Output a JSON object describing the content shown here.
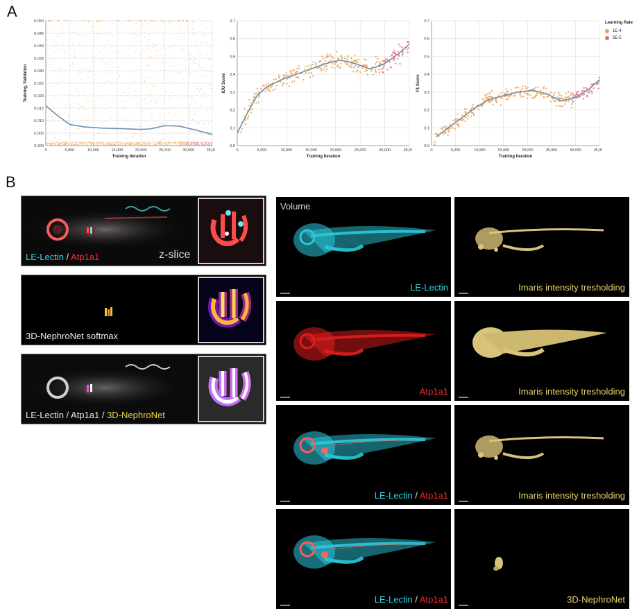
{
  "panels": {
    "a": "A",
    "b": "B"
  },
  "legend": {
    "title": "Learning Rate",
    "items": [
      {
        "label": "1E-4",
        "color": "#f0a04a"
      },
      {
        "label": "5E-5",
        "color": "#e0707a"
      }
    ]
  },
  "chart_data": [
    {
      "type": "scatter",
      "xlabel": "Training Iteration",
      "ylabel": "Training, Validation",
      "xlim": [
        0,
        35000
      ],
      "ylim": [
        0,
        0.05
      ],
      "x_ticks": [
        "0",
        "5,000",
        "10,000",
        "15,000",
        "20,000",
        "25,000",
        "30,000",
        "35,000"
      ],
      "y_ticks": [
        "0.000",
        "0.005",
        "0.010",
        "0.015",
        "0.020",
        "0.025",
        "0.030",
        "0.035",
        "0.040",
        "0.045",
        "0.050"
      ],
      "trend": {
        "x": [
          0,
          2500,
          5000,
          8000,
          12000,
          16000,
          20000,
          22000,
          25000,
          28000,
          31000,
          35000
        ],
        "y": [
          0.016,
          0.012,
          0.0085,
          0.0075,
          0.007,
          0.0068,
          0.0065,
          0.0067,
          0.008,
          0.0078,
          0.0065,
          0.0045
        ]
      },
      "grid": true
    },
    {
      "type": "scatter",
      "xlabel": "Training Iteration",
      "ylabel": "IOU Score",
      "xlim": [
        0,
        35000
      ],
      "ylim": [
        0,
        0.7
      ],
      "x_ticks": [
        "0",
        "5,000",
        "10,000",
        "15,000",
        "20,000",
        "25,000",
        "30,000",
        "35,000"
      ],
      "y_ticks": [
        "0.0",
        "0.1",
        "0.2",
        "0.3",
        "0.4",
        "0.5",
        "0.6",
        "0.7"
      ],
      "trend": {
        "x": [
          0,
          2000,
          4000,
          6000,
          9000,
          12000,
          15000,
          18000,
          21000,
          24000,
          27000,
          30000,
          33000,
          35000
        ],
        "y": [
          0.07,
          0.18,
          0.28,
          0.33,
          0.37,
          0.4,
          0.43,
          0.46,
          0.48,
          0.46,
          0.43,
          0.46,
          0.52,
          0.57
        ]
      },
      "grid": true
    },
    {
      "type": "scatter",
      "xlabel": "Training Iteration",
      "ylabel": "F1 Score",
      "xlim": [
        0,
        35000
      ],
      "ylim": [
        0,
        0.7
      ],
      "x_ticks": [
        "0",
        "5,000",
        "10,000",
        "15,000",
        "20,000",
        "25,000",
        "30,000",
        "35,000"
      ],
      "y_ticks": [
        "0.0",
        "0.1",
        "0.2",
        "0.3",
        "0.4",
        "0.5",
        "0.6",
        "0.7"
      ],
      "trend": {
        "x": [
          1000,
          3000,
          6000,
          9000,
          12000,
          15000,
          18000,
          21000,
          24000,
          27000,
          30000,
          33000,
          35000
        ],
        "y": [
          0.05,
          0.09,
          0.15,
          0.21,
          0.26,
          0.28,
          0.3,
          0.31,
          0.29,
          0.25,
          0.27,
          0.32,
          0.37
        ]
      },
      "grid": true
    }
  ],
  "left_panels": [
    {
      "label_parts": [
        "LE-Lectin",
        " / ",
        "Atp1a1"
      ],
      "tag": "z-slice"
    },
    {
      "label": "3D-NephroNet softmax"
    },
    {
      "label_parts": [
        "LE-Lectin / Atp1a1 / ",
        "3D-NephroNet"
      ]
    }
  ],
  "right_panels": {
    "volume_label": "Volume",
    "rows": [
      {
        "left_parts": [
          "LE-Lectin"
        ],
        "right": "Imaris intensity tresholding"
      },
      {
        "left_parts": [
          "Atp1a1"
        ],
        "right": "Imaris intensity tresholding"
      },
      {
        "left_parts": [
          "LE-Lectin",
          " / ",
          "Atp1a1"
        ],
        "right": "Imaris intensity tresholding"
      },
      {
        "left_parts": [
          "LE-Lectin",
          " / ",
          "Atp1a1"
        ],
        "right": "3D-NephroNet"
      }
    ]
  }
}
